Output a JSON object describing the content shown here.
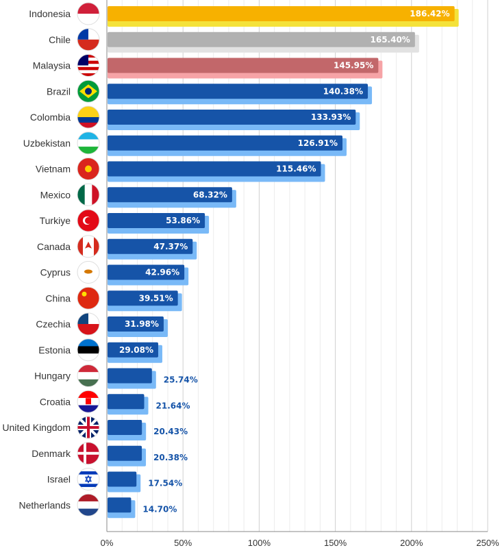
{
  "chart_data": {
    "type": "bar",
    "orientation": "horizontal",
    "title": "",
    "xlabel": "",
    "ylabel": "",
    "xlim": [
      0,
      250
    ],
    "x_ticks": [
      "0%",
      "50%",
      "100%",
      "150%",
      "200%",
      "250%"
    ],
    "grid": true,
    "value_suffix": "%",
    "categories": [
      "Indonesia",
      "Chile",
      "Malaysia",
      "Brazil",
      "Colombia",
      "Uzbekistan",
      "Vietnam",
      "Mexico",
      "Turkiye",
      "Canada",
      "Cyprus",
      "China",
      "Czechia",
      "Estonia",
      "Hungary",
      "Croatia",
      "United Kingdom",
      "Denmark",
      "Israel",
      "Netherlands"
    ],
    "values": [
      186.42,
      165.4,
      145.95,
      140.38,
      133.93,
      126.91,
      115.46,
      68.32,
      53.86,
      47.37,
      42.96,
      39.51,
      31.98,
      29.08,
      25.74,
      21.64,
      20.43,
      20.38,
      17.54,
      14.7
    ],
    "value_labels": [
      "186.42%",
      "165.40%",
      "145.95%",
      "140.38%",
      "133.93%",
      "126.91%",
      "115.46%",
      "68.32%",
      "53.86%",
      "47.37%",
      "42.96%",
      "39.51%",
      "31.98%",
      "29.08%",
      "25.74%",
      "21.64%",
      "20.43%",
      "20.38%",
      "17.54%",
      "14.70%"
    ],
    "bar_colors": {
      "Indonesia": {
        "fill": "#f7b100",
        "shadow": "#f4e23a"
      },
      "Chile": {
        "fill": "#b1b1b1",
        "shadow": "#e2e2e2"
      },
      "Malaysia": {
        "fill": "#c2676a",
        "shadow": "#f6a3a6"
      },
      "default": {
        "fill": "#1654a8",
        "shadow": "#79b9f7"
      }
    },
    "outside_label_color": "#1654a8",
    "flags": {
      "Indonesia": {
        "dir": "h",
        "colors": [
          "#d0203a",
          "#ffffff"
        ]
      },
      "Chile": {
        "dir": "h",
        "colors": [
          "#ffffff",
          "#d52b1e"
        ],
        "canton": "#0039a6"
      },
      "Malaysia": {
        "dir": "h",
        "colors": [
          "#cc0001",
          "#ffffff",
          "#cc0001",
          "#ffffff",
          "#cc0001",
          "#ffffff",
          "#cc0001"
        ],
        "canton": "#010066"
      },
      "Brazil": {
        "dir": "h",
        "colors": [
          "#009b3a"
        ],
        "emblem": "#fedf00"
      },
      "Colombia": {
        "dir": "h",
        "colors": [
          "#fcd116",
          "#fcd116",
          "#003893",
          "#ce1126"
        ]
      },
      "Uzbekistan": {
        "dir": "h",
        "colors": [
          "#1eb3e5",
          "#ffffff",
          "#1eb53a"
        ]
      },
      "Vietnam": {
        "dir": "h",
        "colors": [
          "#da251d"
        ],
        "emblem": "#ffcd00"
      },
      "Mexico": {
        "dir": "v",
        "colors": [
          "#006847",
          "#ffffff",
          "#ce1126"
        ]
      },
      "Turkiye": {
        "dir": "h",
        "colors": [
          "#e30a17"
        ],
        "emblem": "#ffffff"
      },
      "Canada": {
        "dir": "v",
        "colors": [
          "#d52b1e",
          "#ffffff",
          "#ffffff",
          "#d52b1e"
        ],
        "emblem": "#d52b1e"
      },
      "Cyprus": {
        "dir": "h",
        "colors": [
          "#ffffff"
        ],
        "emblem": "#d57800"
      },
      "China": {
        "dir": "h",
        "colors": [
          "#de2910"
        ],
        "emblem": "#ffde00"
      },
      "Czechia": {
        "dir": "h",
        "colors": [
          "#ffffff",
          "#d7141a"
        ],
        "canton": "#11457e"
      },
      "Estonia": {
        "dir": "h",
        "colors": [
          "#0072ce",
          "#000000",
          "#ffffff"
        ]
      },
      "Hungary": {
        "dir": "h",
        "colors": [
          "#ce2939",
          "#ffffff",
          "#477050"
        ]
      },
      "Croatia": {
        "dir": "h",
        "colors": [
          "#ff0000",
          "#ffffff",
          "#171796"
        ],
        "emblem": "#ff0000"
      },
      "United Kingdom": {
        "dir": "h",
        "colors": [
          "#012169"
        ],
        "emblem": "#c8102e"
      },
      "Denmark": {
        "dir": "h",
        "colors": [
          "#c8102e"
        ],
        "emblem": "#ffffff"
      },
      "Israel": {
        "dir": "h",
        "colors": [
          "#ffffff",
          "#0038b8",
          "#ffffff",
          "#ffffff",
          "#ffffff",
          "#0038b8",
          "#ffffff"
        ],
        "emblem": "#0038b8"
      },
      "Netherlands": {
        "dir": "h",
        "colors": [
          "#ae1c28",
          "#ffffff",
          "#21468b"
        ]
      }
    }
  }
}
